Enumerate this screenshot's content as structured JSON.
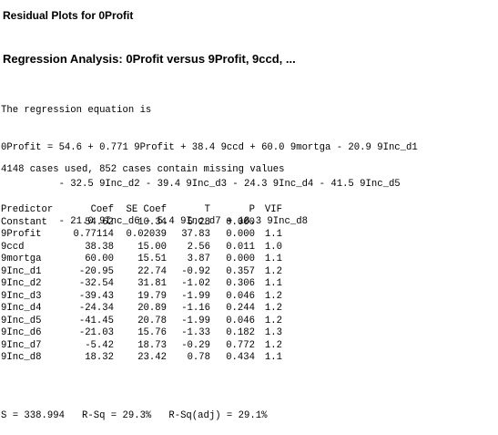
{
  "heading_residual": "Residual Plots for 0Profit",
  "heading_regression": "Regression Analysis: 0Profit versus 9Profit, 9ccd, ...",
  "equation": {
    "intro": "The regression equation is",
    "lines": [
      "0Profit = 54.6 + 0.771 9Profit + 38.4 9ccd + 60.0 9mortga - 20.9 9Inc_d1",
      "          - 32.5 9Inc_d2 - 39.4 9Inc_d3 - 24.3 9Inc_d4 - 41.5 9Inc_d5",
      "          - 21.0 9Inc_d6 - 5.4 9Inc_d7 + 18.3 9Inc_d8"
    ]
  },
  "cases_text": "4148 cases used, 852 cases contain missing values",
  "coef_table": {
    "headers": [
      "Predictor",
      "Coef",
      "SE Coef",
      "T",
      "P",
      "VIF"
    ],
    "rows": [
      [
        "Constant",
        "54.62",
        "10.34",
        "5.28",
        "0.000",
        ""
      ],
      [
        "9Profit",
        "0.77114",
        "0.02039",
        "37.83",
        "0.000",
        "1.1"
      ],
      [
        "9ccd",
        "38.38",
        "15.00",
        "2.56",
        "0.011",
        "1.0"
      ],
      [
        "9mortga",
        "60.00",
        "15.51",
        "3.87",
        "0.000",
        "1.1"
      ],
      [
        "9Inc_d1",
        "-20.95",
        "22.74",
        "-0.92",
        "0.357",
        "1.2"
      ],
      [
        "9Inc_d2",
        "-32.54",
        "31.81",
        "-1.02",
        "0.306",
        "1.1"
      ],
      [
        "9Inc_d3",
        "-39.43",
        "19.79",
        "-1.99",
        "0.046",
        "1.2"
      ],
      [
        "9Inc_d4",
        "-24.34",
        "20.89",
        "-1.16",
        "0.244",
        "1.2"
      ],
      [
        "9Inc_d5",
        "-41.45",
        "20.78",
        "-1.99",
        "0.046",
        "1.2"
      ],
      [
        "9Inc_d6",
        "-21.03",
        "15.76",
        "-1.33",
        "0.182",
        "1.3"
      ],
      [
        "9Inc_d7",
        "-5.42",
        "18.73",
        "-0.29",
        "0.772",
        "1.2"
      ],
      [
        "9Inc_d8",
        "18.32",
        "23.42",
        "0.78",
        "0.434",
        "1.1"
      ]
    ]
  },
  "summary_text": "S = 338.994   R-Sq = 29.3%   R-Sq(adj) = 29.1%"
}
